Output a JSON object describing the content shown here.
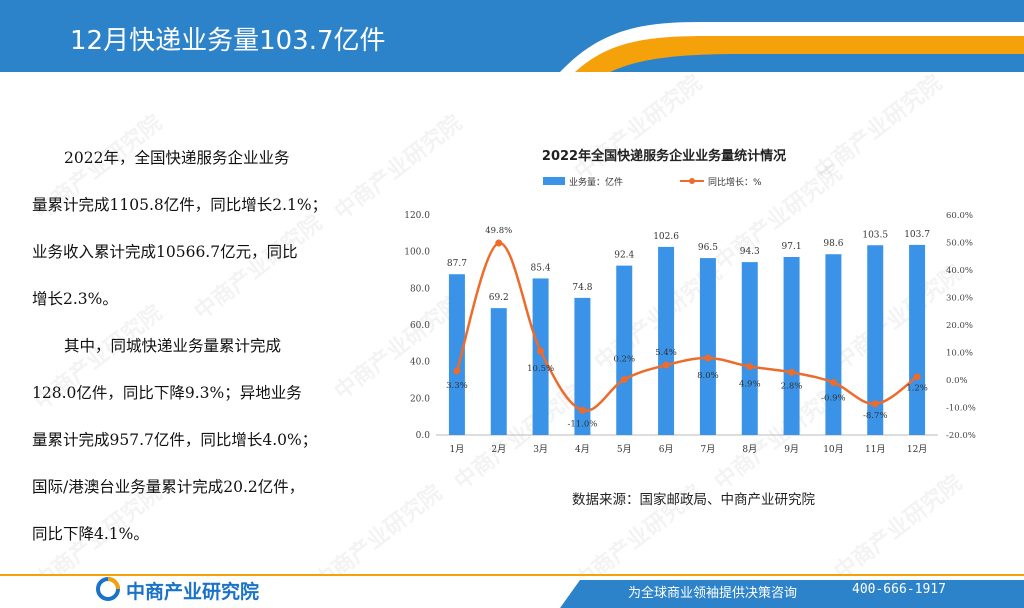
{
  "header": {
    "title": "12月快递业务量103.7亿件",
    "colors": {
      "bar": "#2d83c9",
      "accent": "#f5a20a"
    }
  },
  "body": {
    "paragraphs": [
      {
        "lines": [
          "2022年，全国快递服务企业业务",
          "量累计完成1105.8亿件，同比增长2.1%；",
          "业务收入累计完成10566.7亿元，同比",
          "增长2.3%。"
        ]
      },
      {
        "lines": [
          "其中，同城快递业务量累计完成",
          "128.0亿件，同比下降9.3%；异地业务",
          "量累计完成957.7亿件，同比增长4.0%；",
          "国际/港澳台业务量累计完成20.2亿件，",
          "同比下降4.1%。"
        ]
      }
    ]
  },
  "watermark": {
    "text": "中商产业研究院"
  },
  "chart_data": {
    "type": "bar",
    "title": "2022年全国快递服务企业业务量统计情况",
    "categories": [
      "1月",
      "2月",
      "3月",
      "4月",
      "5月",
      "6月",
      "7月",
      "8月",
      "9月",
      "10月",
      "11月",
      "12月"
    ],
    "series": [
      {
        "name": "业务量：亿件",
        "type": "bar",
        "axis": "left",
        "color": "#3a93e6",
        "values": [
          87.7,
          69.2,
          85.4,
          74.8,
          92.4,
          102.6,
          96.5,
          94.3,
          97.1,
          98.6,
          103.5,
          103.7
        ],
        "labels": [
          "87.7",
          "69.2",
          "85.4",
          "74.8",
          "92.4",
          "102.6",
          "96.5",
          "94.3",
          "97.1",
          "98.6",
          "103.5",
          "103.7"
        ]
      },
      {
        "name": "同比增长：%",
        "type": "line",
        "axis": "right",
        "color": "#ed6b2b",
        "values": [
          3.3,
          49.8,
          10.5,
          -11.0,
          0.2,
          5.4,
          8.0,
          4.9,
          2.8,
          -0.9,
          -8.7,
          1.2
        ],
        "labels": [
          "3.3%",
          "49.8%",
          "10.5%",
          "-11.0%",
          "0.2%",
          "5.4%",
          "8.0%",
          "4.9%",
          "2.8%",
          "-0.9%",
          "-8.7%",
          "1.2%"
        ]
      }
    ],
    "y_left": {
      "min": 0,
      "max": 120,
      "ticks": [
        "0.0",
        "20.0",
        "40.0",
        "60.0",
        "80.0",
        "100.0",
        "120.0"
      ]
    },
    "y_right": {
      "min": -20,
      "max": 60,
      "ticks": [
        "-20.0%",
        "-10.0%",
        "0.0%",
        "10.0%",
        "20.0%",
        "30.0%",
        "40.0%",
        "50.0%",
        "60.0%"
      ]
    },
    "legend_position": "top",
    "grid": false,
    "source": "数据来源：国家邮政局、中商产业研究院"
  },
  "footer": {
    "logo_text": "中商产业研究院",
    "slogan": "为全球商业领袖提供决策咨询",
    "phone": "400-666-1917"
  }
}
